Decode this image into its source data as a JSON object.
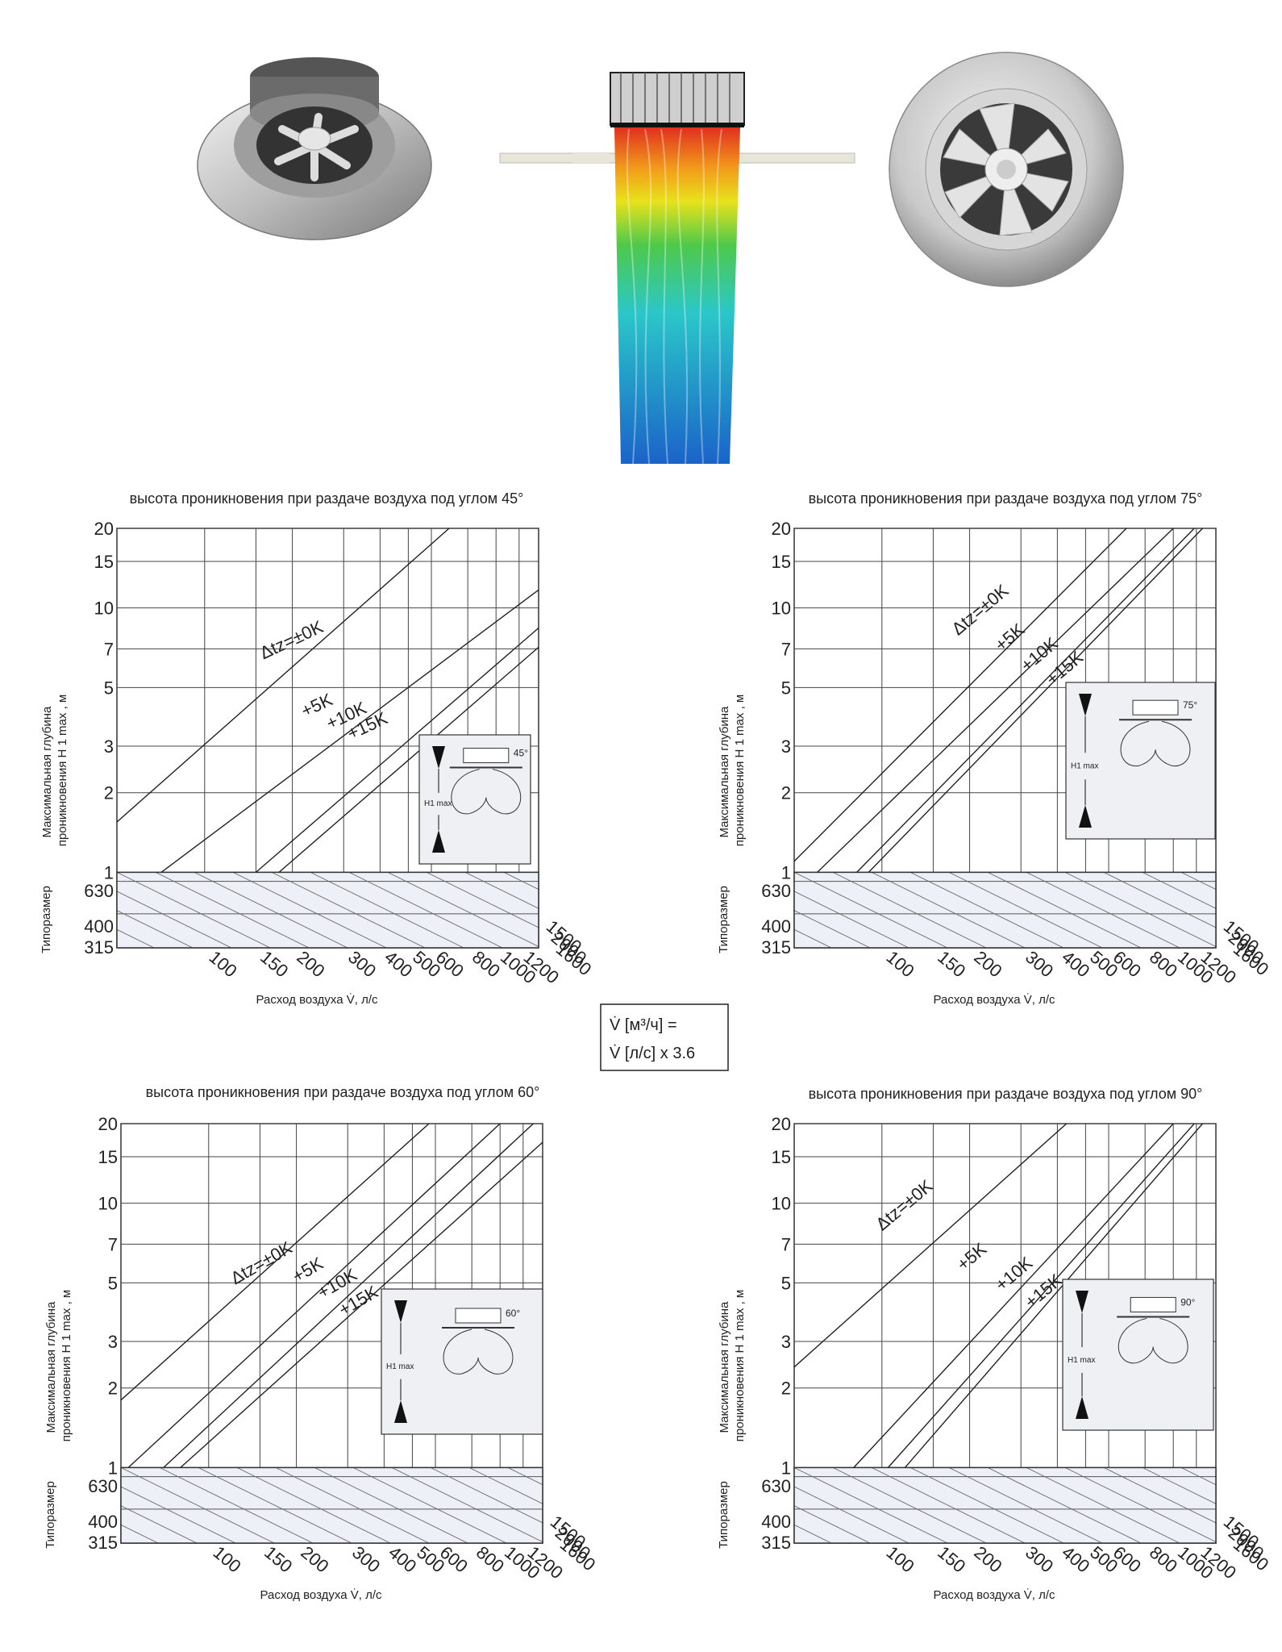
{
  "conversion_note": {
    "line1": "V̇ [м³/ч] =",
    "line2": "V̇ [л/с] x 3.6"
  },
  "chart_data": [
    {
      "type": "line",
      "title": "высота проникновения при раздаче воздуха под углом 45°",
      "ylabel_line1": "Максимальная глубина",
      "ylabel_line2": "проникновения H 1 max , м",
      "xlabel": "Расход воздуха V̇, л/с",
      "size_label": "Типоразмер",
      "x_scale": "log",
      "y_scale": "log",
      "xlim": [
        50,
        1400
      ],
      "ylim": [
        1,
        20
      ],
      "x_ticks": [
        100,
        150,
        200,
        300,
        400,
        500,
        600,
        800,
        1000,
        1200
      ],
      "x_ticks_right": [
        1500,
        2000,
        1600
      ],
      "y_ticks": [
        1,
        2,
        3,
        5,
        7,
        10,
        15,
        20
      ],
      "size_ticks": [
        "630",
        "400",
        "315"
      ],
      "inset_angle": "45°",
      "inset_label": "H1 max",
      "series": [
        {
          "name": "Δtz=±0K",
          "x": [
            50,
            690
          ],
          "y": [
            1.55,
            20
          ]
        },
        {
          "name": "+5K",
          "x": [
            71,
            1400
          ],
          "y": [
            1.0,
            11.7
          ]
        },
        {
          "name": "+10K",
          "x": [
            150,
            1400
          ],
          "y": [
            1.0,
            8.4
          ]
        },
        {
          "name": "+15K",
          "x": [
            180,
            1400
          ],
          "y": [
            1.0,
            7.1
          ]
        }
      ]
    },
    {
      "type": "line",
      "title": "высота проникновения при раздаче воздуха под углом 75°",
      "ylabel_line1": "Максимальная глубина",
      "ylabel_line2": "проникновения H 1 max , м",
      "xlabel": "Расход воздуха V̇, л/с",
      "size_label": "Типоразмер",
      "x_scale": "log",
      "y_scale": "log",
      "xlim": [
        50,
        1400
      ],
      "ylim": [
        1,
        20
      ],
      "x_ticks": [
        100,
        150,
        200,
        300,
        400,
        500,
        600,
        800,
        1000,
        1200
      ],
      "x_ticks_right": [
        1500,
        2000,
        1600
      ],
      "y_ticks": [
        1,
        2,
        3,
        5,
        7,
        10,
        15,
        20
      ],
      "size_ticks": [
        "630",
        "400",
        "315"
      ],
      "inset_angle": "75°",
      "inset_label": "H1 max",
      "series": [
        {
          "name": "Δtz=±0K",
          "x": [
            50,
            690
          ],
          "y": [
            1.1,
            20
          ]
        },
        {
          "name": "+5K",
          "x": [
            60,
            1000
          ],
          "y": [
            1.0,
            20
          ]
        },
        {
          "name": "+10K",
          "x": [
            82,
            1180
          ],
          "y": [
            1.0,
            20
          ]
        },
        {
          "name": "+15K",
          "x": [
            90,
            1260
          ],
          "y": [
            1.0,
            20
          ]
        }
      ]
    },
    {
      "type": "line",
      "title": "высота проникновения при раздаче воздуха под углом 60°",
      "ylabel_line1": "Максимальная глубина",
      "ylabel_line2": "проникновения H 1 max , м",
      "xlabel": "Расход воздуха V̇, л/с",
      "size_label": "Типоразмер",
      "x_scale": "log",
      "y_scale": "log",
      "xlim": [
        50,
        1400
      ],
      "ylim": [
        1,
        20
      ],
      "x_ticks": [
        100,
        150,
        200,
        300,
        400,
        500,
        600,
        800,
        1000,
        1200
      ],
      "x_ticks_right": [
        1500,
        2000,
        1600
      ],
      "y_ticks": [
        1,
        2,
        3,
        5,
        7,
        10,
        15,
        20
      ],
      "size_ticks": [
        "630",
        "400",
        "315"
      ],
      "inset_angle": "60°",
      "inset_label": "H1 max",
      "series": [
        {
          "name": "Δtz=±0K",
          "x": [
            50,
            570
          ],
          "y": [
            1.8,
            20
          ]
        },
        {
          "name": "+5K",
          "x": [
            53,
            1000
          ],
          "y": [
            1.0,
            20
          ]
        },
        {
          "name": "+10K",
          "x": [
            70,
            1300
          ],
          "y": [
            1.0,
            20
          ]
        },
        {
          "name": "+15K",
          "x": [
            80,
            1400
          ],
          "y": [
            1.0,
            17
          ]
        }
      ]
    },
    {
      "type": "line",
      "title": "высота проникновения при раздаче воздуха под углом 90°",
      "ylabel_line1": "Максимальная глубина",
      "ylabel_line2": "проникновения H 1 max , м",
      "xlabel": "Расход воздуха V̇, л/с",
      "size_label": "Типоразмер",
      "x_scale": "log",
      "y_scale": "log",
      "xlim": [
        50,
        1400
      ],
      "ylim": [
        1,
        20
      ],
      "x_ticks": [
        100,
        150,
        200,
        300,
        400,
        500,
        600,
        800,
        1000,
        1200
      ],
      "x_ticks_right": [
        1500,
        2000,
        1600
      ],
      "y_ticks": [
        1,
        2,
        3,
        5,
        7,
        10,
        15,
        20
      ],
      "size_ticks": [
        "630",
        "400",
        "315"
      ],
      "inset_angle": "90°",
      "inset_label": "H1 max",
      "series": [
        {
          "name": "Δtz=±0K",
          "x": [
            50,
            430
          ],
          "y": [
            2.4,
            20
          ]
        },
        {
          "name": "+5K",
          "x": [
            80,
            1000
          ],
          "y": [
            1.0,
            20
          ]
        },
        {
          "name": "+10K",
          "x": [
            105,
            1180
          ],
          "y": [
            1.0,
            20
          ]
        },
        {
          "name": "+15K",
          "x": [
            120,
            1260
          ],
          "y": [
            1.0,
            20
          ]
        }
      ]
    }
  ]
}
